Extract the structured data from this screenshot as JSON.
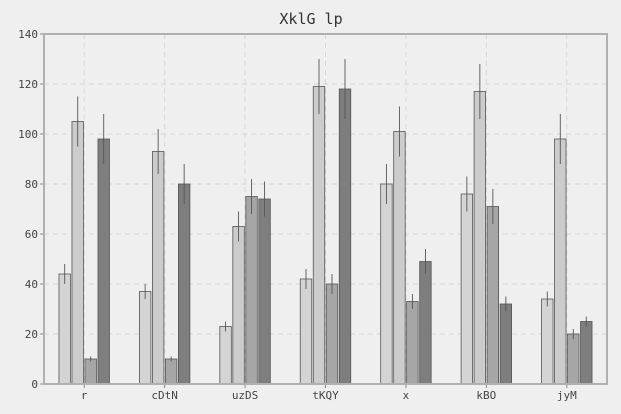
{
  "chart_data": {
    "type": "bar",
    "title": "XklG lp",
    "xlabel": "",
    "ylabel": "",
    "ylim": [
      0,
      140
    ],
    "yticks": [
      0,
      20,
      40,
      60,
      80,
      100,
      120,
      140
    ],
    "grid": true,
    "categories": [
      "r",
      "cDtN",
      "uzDS",
      "tKQY",
      "x",
      "kBO",
      "jyM"
    ],
    "series": [
      {
        "color": "#d4d4d4",
        "values": [
          44,
          37,
          23,
          42,
          80,
          76,
          34
        ],
        "errors": [
          4,
          3,
          2,
          4,
          8,
          7,
          3
        ]
      },
      {
        "color": "#cccccc",
        "values": [
          105,
          93,
          63,
          119,
          101,
          117,
          98
        ],
        "errors": [
          10,
          9,
          6,
          11,
          10,
          11,
          10
        ]
      },
      {
        "color": "#a6a6a6",
        "values": [
          10,
          10,
          75,
          40,
          33,
          71,
          20
        ],
        "errors": [
          1,
          1,
          7,
          4,
          3,
          7,
          2
        ]
      },
      {
        "color": "#7e7e7e",
        "values": [
          98,
          80,
          74,
          118,
          49,
          32,
          25
        ],
        "errors": [
          10,
          8,
          7,
          12,
          5,
          3,
          2
        ]
      }
    ]
  }
}
